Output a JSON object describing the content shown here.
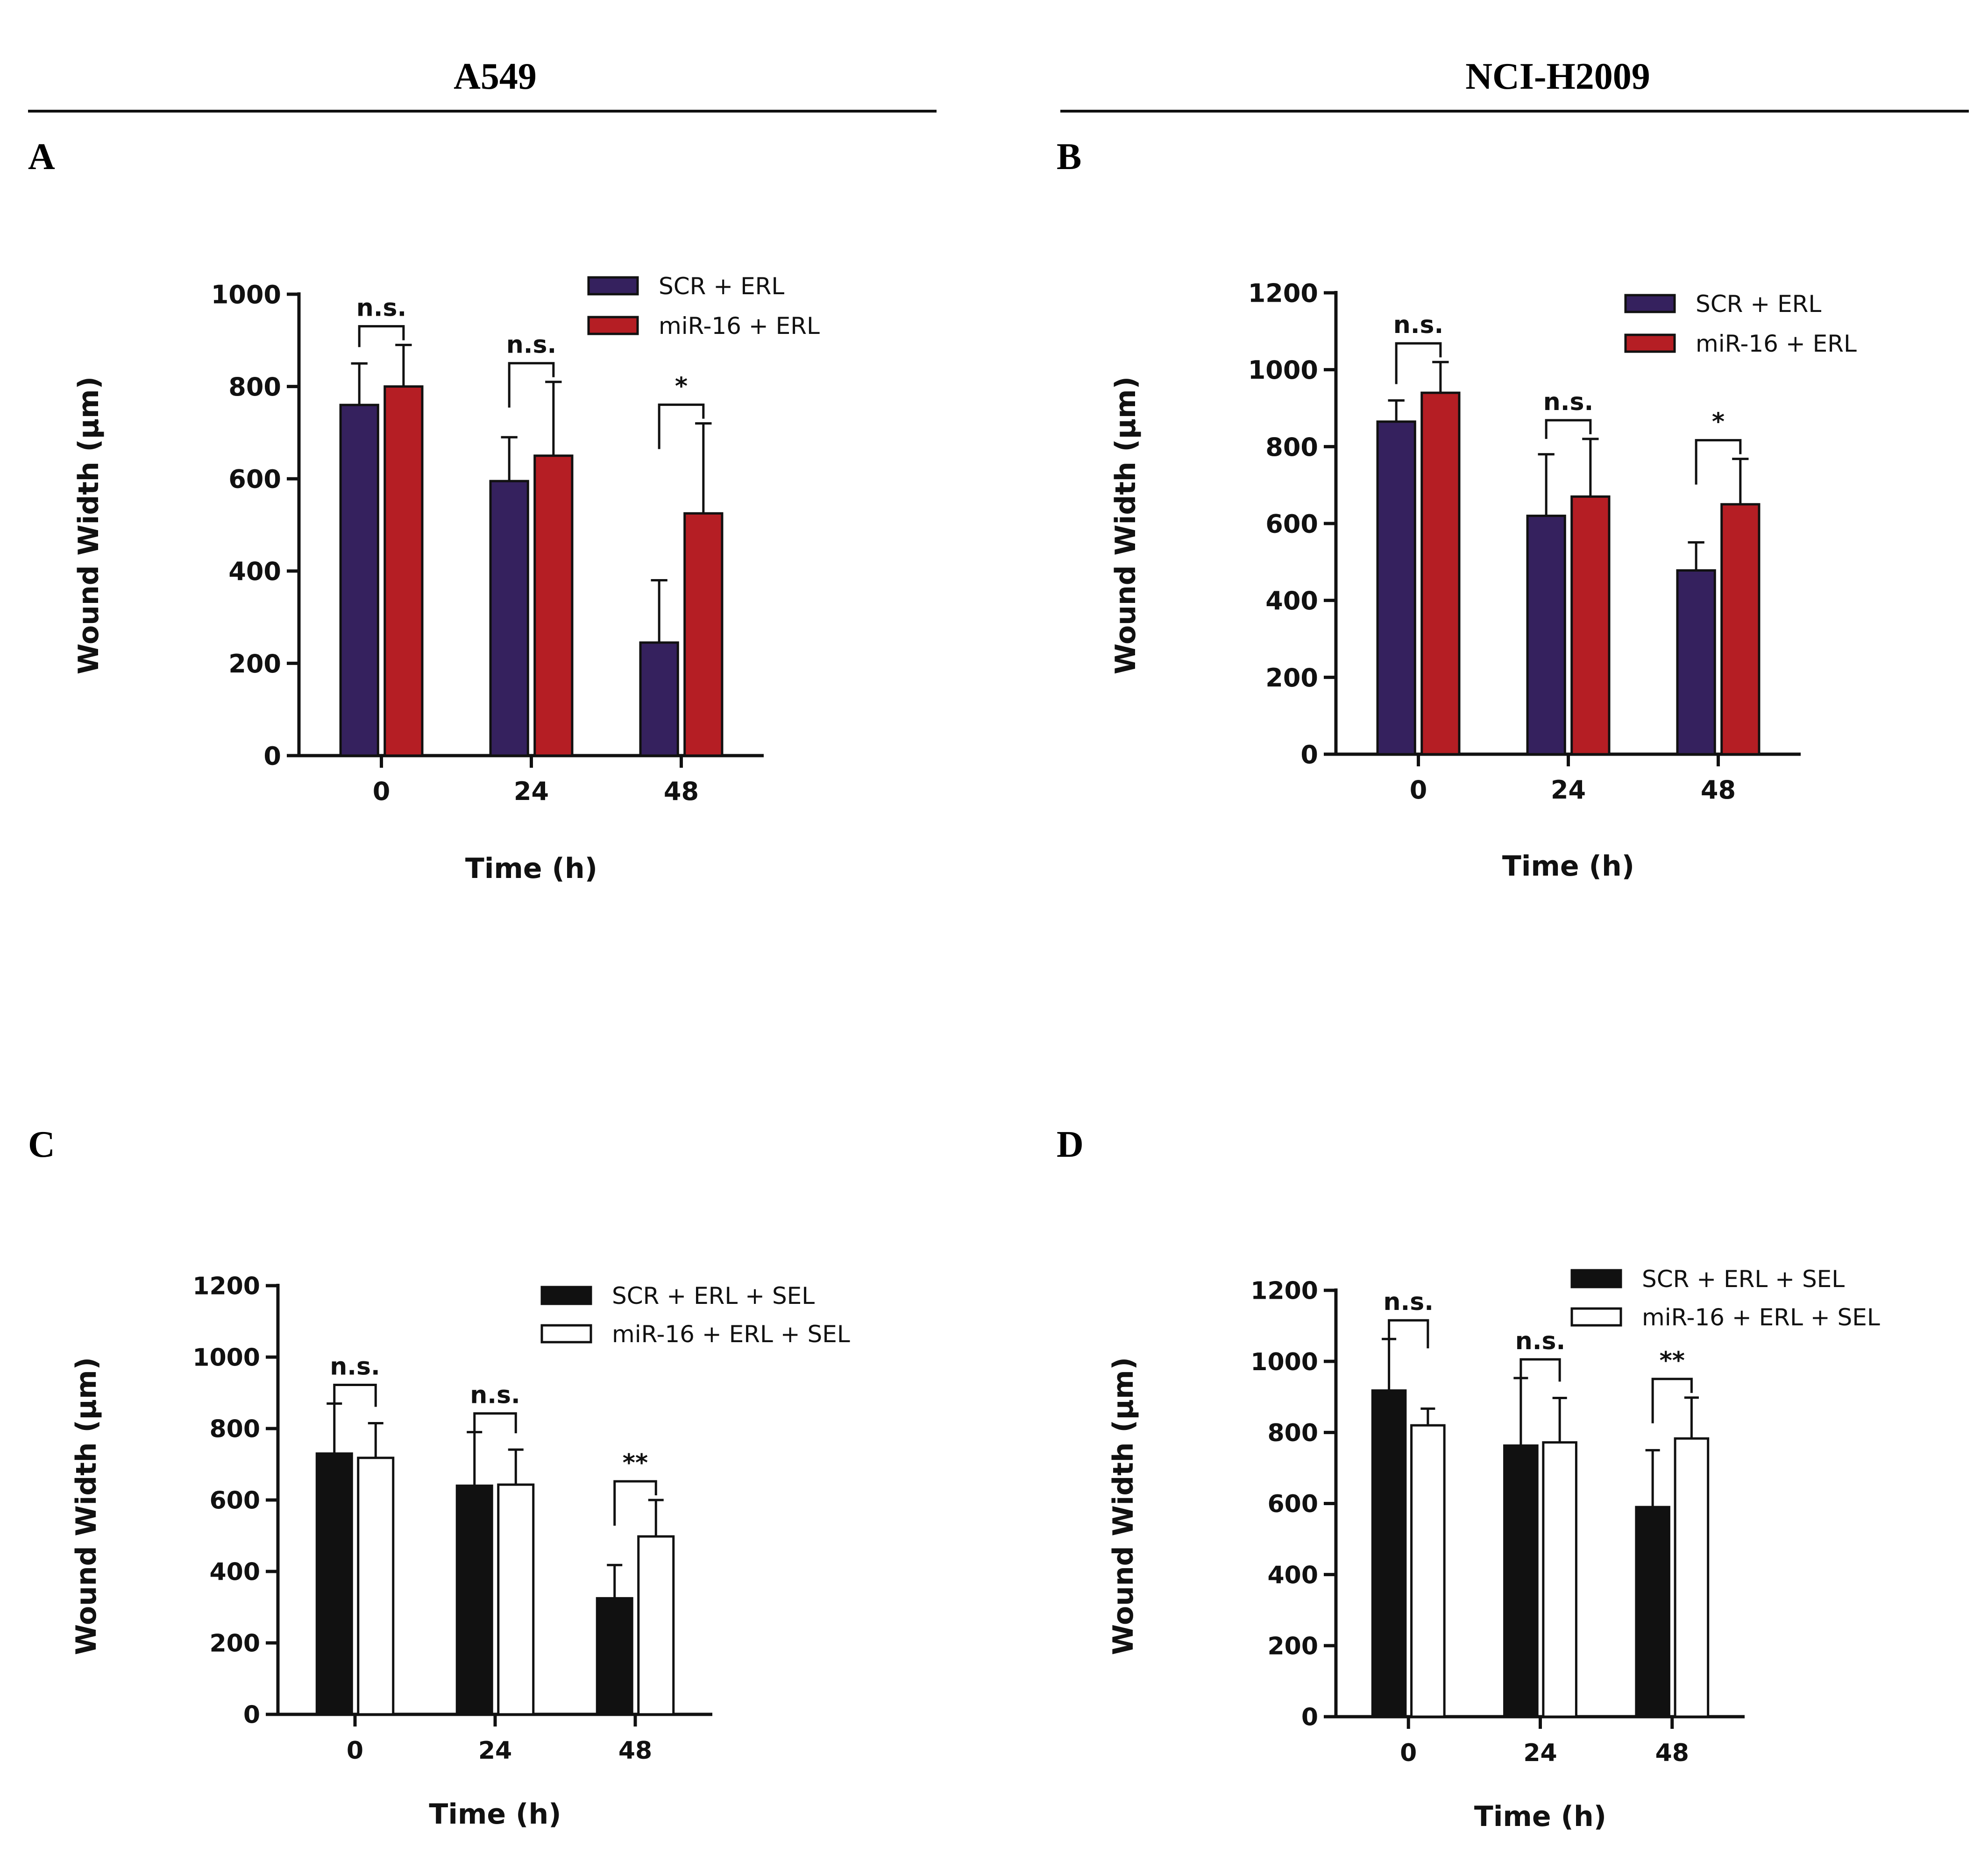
{
  "column_titles": [
    "A549",
    "NCI-H2009"
  ],
  "colors": {
    "scr_erl": "#35215E",
    "mir16_erl": "#B51E24",
    "scr_erl_sel": "#111111",
    "mir16_erl_sel": "#FFFFFF",
    "axis": "#111111"
  },
  "chart_data": [
    {
      "panel": "A",
      "type": "bar",
      "title": "",
      "categories": [
        "0",
        "24",
        "48"
      ],
      "xlabel": "Time (h)",
      "ylabel": "Wound Width (μm)",
      "ylim": [
        0,
        1000
      ],
      "yticks": [
        0,
        200,
        400,
        600,
        800,
        1000
      ],
      "legend_position": "top-right",
      "series": [
        {
          "name": "SCR + ERL",
          "color_key": "scr_erl",
          "values": [
            760,
            595,
            245
          ],
          "errors": [
            90,
            95,
            135
          ]
        },
        {
          "name": "miR-16 + ERL",
          "color_key": "mir16_erl",
          "values": [
            800,
            650,
            525
          ],
          "errors": [
            90,
            160,
            195
          ]
        }
      ],
      "significance": [
        "n.s.",
        "n.s.",
        "*"
      ]
    },
    {
      "panel": "B",
      "type": "bar",
      "title": "",
      "categories": [
        "0",
        "24",
        "48"
      ],
      "xlabel": "Time (h)",
      "ylabel": "Wound Width (μm)",
      "ylim": [
        0,
        1200
      ],
      "yticks": [
        0,
        200,
        400,
        600,
        800,
        1000,
        1200
      ],
      "legend_position": "top-right",
      "series": [
        {
          "name": "SCR + ERL",
          "color_key": "scr_erl",
          "values": [
            865,
            620,
            478
          ],
          "errors": [
            55,
            160,
            73
          ]
        },
        {
          "name": "miR-16 + ERL",
          "color_key": "mir16_erl",
          "values": [
            940,
            670,
            650
          ],
          "errors": [
            80,
            150,
            118
          ]
        }
      ],
      "significance": [
        "n.s.",
        "n.s.",
        "*"
      ]
    },
    {
      "panel": "C",
      "type": "bar",
      "title": "",
      "categories": [
        "0",
        "24",
        "48"
      ],
      "xlabel": "Time (h)",
      "ylabel": "Wound Width (μm)",
      "ylim": [
        0,
        1200
      ],
      "yticks": [
        0,
        200,
        400,
        600,
        800,
        1000,
        1200
      ],
      "legend_position": "top-right",
      "series": [
        {
          "name": "SCR + ERL + SEL",
          "color_key": "scr_erl_sel",
          "values": [
            730,
            640,
            325
          ],
          "errors": [
            140,
            150,
            93
          ]
        },
        {
          "name": "miR-16 + ERL + SEL",
          "color_key": "mir16_erl_sel",
          "values": [
            718,
            643,
            498
          ],
          "errors": [
            97,
            98,
            102
          ]
        }
      ],
      "significance": [
        "n.s.",
        "n.s.",
        "**"
      ]
    },
    {
      "panel": "D",
      "type": "bar",
      "title": "",
      "categories": [
        "0",
        "24",
        "48"
      ],
      "xlabel": "Time (h)",
      "ylabel": "Wound Width (μm)",
      "ylim": [
        0,
        1200
      ],
      "yticks": [
        0,
        200,
        400,
        600,
        800,
        1000,
        1200
      ],
      "legend_position": "top-right",
      "series": [
        {
          "name": "SCR + ERL + SEL",
          "color_key": "scr_erl_sel",
          "values": [
            918,
            763,
            590
          ],
          "errors": [
            145,
            190,
            160
          ]
        },
        {
          "name": "miR-16 + ERL + SEL",
          "color_key": "mir16_erl_sel",
          "values": [
            820,
            772,
            783
          ],
          "errors": [
            47,
            125,
            115
          ]
        }
      ],
      "significance": [
        "n.s.",
        "n.s.",
        "**"
      ]
    }
  ]
}
